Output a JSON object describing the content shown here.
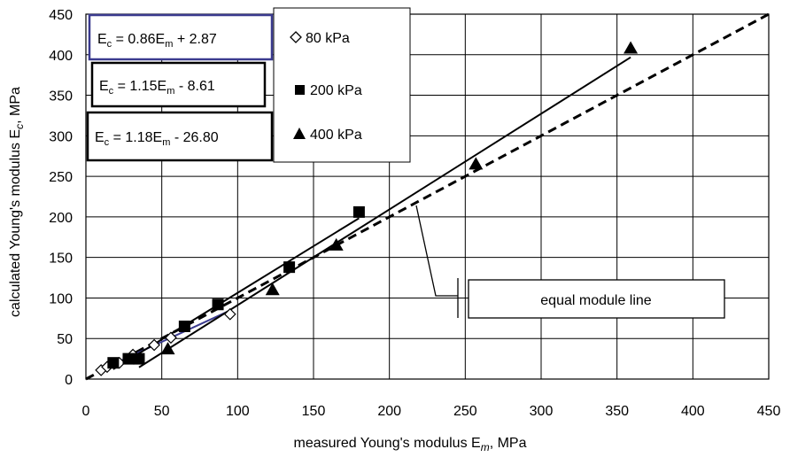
{
  "chart_data": {
    "type": "scatter",
    "xlabel": "measured Young's modulus E",
    "xlabel_sub": "m",
    "xlabel_unit": ",  MPa",
    "ylabel": "calculated Young's modulus E",
    "ylabel_sub": "c",
    "ylabel_unit": ", MPa",
    "xlim": [
      0,
      450
    ],
    "ylim": [
      0,
      450
    ],
    "xticks": [
      "0",
      "50",
      "100",
      "150",
      "200",
      "250",
      "300",
      "350",
      "400",
      "450"
    ],
    "yticks": [
      "0",
      "50",
      "100",
      "150",
      "200",
      "250",
      "300",
      "350",
      "400",
      "450"
    ],
    "grid": true,
    "legend_position": "top-center",
    "series": [
      {
        "name": "80 kPa",
        "marker": "open-diamond",
        "color": "#000000",
        "points": [
          [
            10,
            11
          ],
          [
            14,
            15
          ],
          [
            22,
            20
          ],
          [
            31,
            30
          ],
          [
            45,
            42
          ],
          [
            56,
            51
          ],
          [
            95,
            80
          ]
        ]
      },
      {
        "name": "200 kPa",
        "marker": "filled-square",
        "color": "#000000",
        "points": [
          [
            18,
            20
          ],
          [
            28,
            25
          ],
          [
            35,
            25
          ],
          [
            65,
            65
          ],
          [
            87,
            92
          ],
          [
            134,
            138
          ],
          [
            180,
            206
          ]
        ]
      },
      {
        "name": "400 kPa",
        "marker": "filled-triangle",
        "color": "#000000",
        "points": [
          [
            33,
            25
          ],
          [
            54,
            37
          ],
          [
            123,
            110
          ],
          [
            165,
            165
          ],
          [
            257,
            265
          ],
          [
            359,
            408
          ]
        ]
      }
    ],
    "fit_lines": [
      {
        "label_main": "E",
        "label_sub1": "c",
        "label_mid": " = 0.86E",
        "label_sub2": "m",
        "label_end": " + 2.87",
        "slope": 0.86,
        "intercept": 2.87,
        "x_range": [
          10,
          95
        ],
        "color": "#3b3b8f",
        "width": 2
      },
      {
        "label_main": "E",
        "label_sub1": "c",
        "label_mid": " = 1.15E",
        "label_sub2": "m",
        "label_end": " - 8.61",
        "slope": 1.15,
        "intercept": -8.61,
        "x_range": [
          18,
          180
        ],
        "color": "#000000",
        "width": 2
      },
      {
        "label_main": "E",
        "label_sub1": "c",
        "label_mid": " = 1.18E",
        "label_sub2": "m",
        "label_end": " - 26.80",
        "slope": 1.18,
        "intercept": -26.8,
        "x_range": [
          35,
          359
        ],
        "color": "#000000",
        "width": 2
      }
    ],
    "equal_line": {
      "label": "equal module line",
      "slope": 1,
      "intercept": 0,
      "x_range": [
        0,
        450
      ],
      "style": "dashed"
    }
  }
}
